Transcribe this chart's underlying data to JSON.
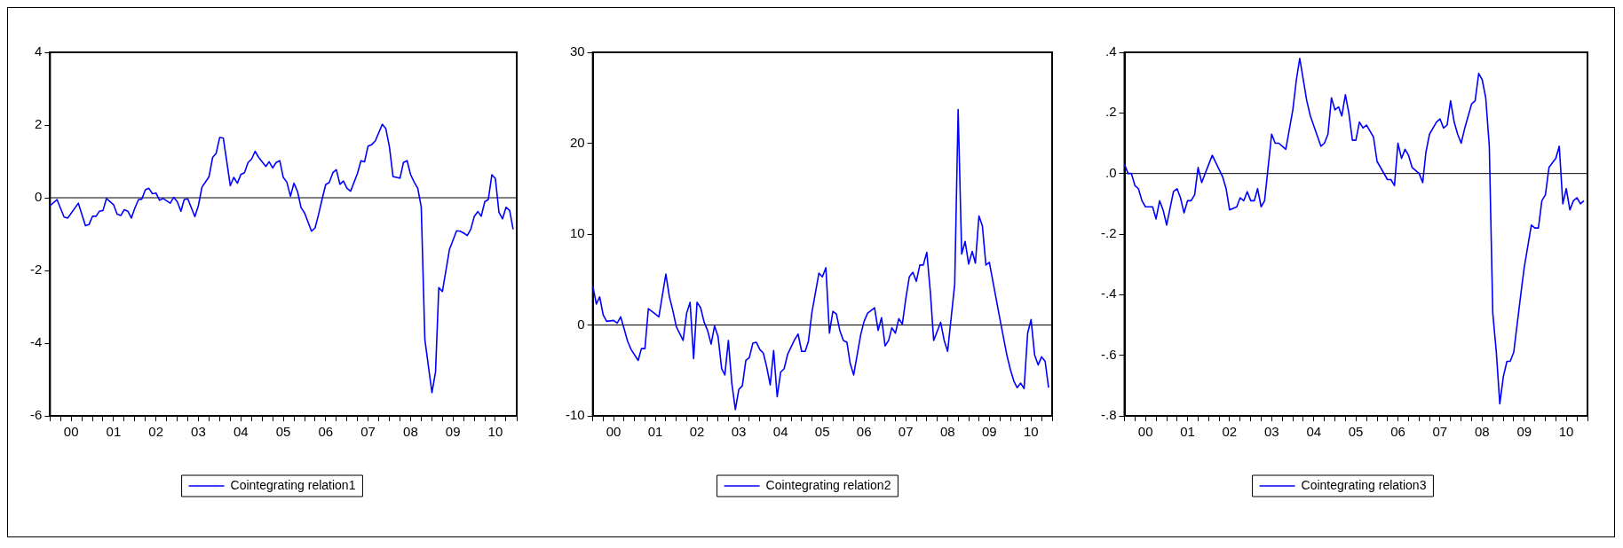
{
  "chart_data": [
    {
      "type": "line",
      "legend": "bottom",
      "xlim": [
        "2000-01",
        "2011-01"
      ],
      "ylim": [
        -6,
        4
      ],
      "yticks": [
        -6,
        -4,
        -2,
        0,
        2,
        4
      ],
      "xticks": [
        {
          "value": "2000-01",
          "label": null
        },
        {
          "value": "2000-04",
          "label": null
        },
        {
          "value": "2000-07",
          "label": "00"
        },
        {
          "value": "2000-10",
          "label": null
        },
        {
          "value": "2001-01",
          "label": null
        },
        {
          "value": "2001-04",
          "label": null
        },
        {
          "value": "2001-07",
          "label": "01"
        },
        {
          "value": "2001-10",
          "label": null
        },
        {
          "value": "2002-01",
          "label": null
        },
        {
          "value": "2002-04",
          "label": null
        },
        {
          "value": "2002-07",
          "label": "02"
        },
        {
          "value": "2002-10",
          "label": null
        },
        {
          "value": "2003-01",
          "label": null
        },
        {
          "value": "2003-04",
          "label": null
        },
        {
          "value": "2003-07",
          "label": "03"
        },
        {
          "value": "2003-10",
          "label": null
        },
        {
          "value": "2004-01",
          "label": null
        },
        {
          "value": "2004-04",
          "label": null
        },
        {
          "value": "2004-07",
          "label": "04"
        },
        {
          "value": "2004-10",
          "label": null
        },
        {
          "value": "2005-01",
          "label": null
        },
        {
          "value": "2005-04",
          "label": null
        },
        {
          "value": "2005-07",
          "label": "05"
        },
        {
          "value": "2005-10",
          "label": null
        },
        {
          "value": "2006-01",
          "label": null
        },
        {
          "value": "2006-04",
          "label": null
        },
        {
          "value": "2006-07",
          "label": "06"
        },
        {
          "value": "2006-10",
          "label": null
        },
        {
          "value": "2007-01",
          "label": null
        },
        {
          "value": "2007-04",
          "label": null
        },
        {
          "value": "2007-07",
          "label": "07"
        },
        {
          "value": "2007-10",
          "label": null
        },
        {
          "value": "2008-01",
          "label": null
        },
        {
          "value": "2008-04",
          "label": null
        },
        {
          "value": "2008-07",
          "label": "08"
        },
        {
          "value": "2008-10",
          "label": null
        },
        {
          "value": "2009-01",
          "label": null
        },
        {
          "value": "2009-04",
          "label": null
        },
        {
          "value": "2009-07",
          "label": "09"
        },
        {
          "value": "2009-10",
          "label": null
        },
        {
          "value": "2010-01",
          "label": null
        },
        {
          "value": "2010-04",
          "label": null
        },
        {
          "value": "2010-07",
          "label": "10"
        },
        {
          "value": "2010-10",
          "label": null
        },
        {
          "value": "2011-01",
          "label": null
        }
      ],
      "ref_lines": [
        {
          "axis": "y",
          "value": 0,
          "color": "#000000"
        }
      ],
      "series": [
        {
          "name": "Cointegrating relation1",
          "color": "#0000ff",
          "x": [
            "2000-01",
            "2000-03",
            "2000-05",
            "2000-06",
            "2000-09",
            "2000-11",
            "2000-12",
            "2001-01",
            "2001-02",
            "2001-03",
            "2001-04",
            "2001-05",
            "2001-07",
            "2001-08",
            "2001-09",
            "2001-10",
            "2001-11",
            "2001-12",
            "2002-01",
            "2002-02",
            "2002-03",
            "2002-04",
            "2002-05",
            "2002-06",
            "2002-07",
            "2002-08",
            "2002-09",
            "2002-11",
            "2002-12",
            "2003-01",
            "2003-02",
            "2003-03",
            "2003-04",
            "2003-06",
            "2003-07",
            "2003-08",
            "2003-10",
            "2003-11",
            "2003-12",
            "2004-01",
            "2004-02",
            "2004-04",
            "2004-05",
            "2004-06",
            "2004-07",
            "2004-08",
            "2004-09",
            "2004-10",
            "2004-11",
            "2004-12",
            "2005-02",
            "2005-03",
            "2005-04",
            "2005-05",
            "2005-06",
            "2005-07",
            "2005-08",
            "2005-09",
            "2005-10",
            "2005-11",
            "2005-12",
            "2006-01",
            "2006-03",
            "2006-04",
            "2006-05",
            "2006-06",
            "2006-07",
            "2006-08",
            "2006-09",
            "2006-10",
            "2006-11",
            "2006-12",
            "2007-01",
            "2007-02",
            "2007-04",
            "2007-05",
            "2007-06",
            "2007-07",
            "2007-08",
            "2007-09",
            "2007-11",
            "2007-12",
            "2008-01",
            "2008-02",
            "2008-03",
            "2008-04",
            "2008-05",
            "2008-06",
            "2008-07",
            "2008-08",
            "2008-09",
            "2008-10",
            "2008-11",
            "2009-01",
            "2009-02",
            "2009-03",
            "2009-04",
            "2009-06",
            "2009-08",
            "2009-09",
            "2009-10",
            "2009-11",
            "2009-12",
            "2010-01",
            "2010-02",
            "2010-03",
            "2010-04",
            "2010-05",
            "2010-06",
            "2010-07",
            "2010-08",
            "2010-09",
            "2010-10",
            "2010-11",
            "2010-12"
          ],
          "values": [
            -0.22,
            -0.05,
            -0.53,
            -0.56,
            -0.15,
            -0.77,
            -0.74,
            -0.51,
            -0.51,
            -0.37,
            -0.35,
            -0.02,
            -0.19,
            -0.45,
            -0.49,
            -0.33,
            -0.37,
            -0.56,
            -0.28,
            -0.05,
            -0.04,
            0.22,
            0.26,
            0.11,
            0.13,
            -0.07,
            -0.02,
            -0.15,
            0.01,
            -0.11,
            -0.37,
            -0.05,
            -0.03,
            -0.52,
            -0.22,
            0.29,
            0.58,
            1.11,
            1.22,
            1.66,
            1.64,
            0.33,
            0.56,
            0.4,
            0.64,
            0.69,
            0.97,
            1.06,
            1.28,
            1.11,
            0.86,
            0.99,
            0.82,
            0.97,
            1.02,
            0.56,
            0.43,
            0.04,
            0.4,
            0.17,
            -0.27,
            -0.42,
            -0.92,
            -0.83,
            -0.46,
            -0.03,
            0.36,
            0.42,
            0.69,
            0.77,
            0.37,
            0.46,
            0.26,
            0.18,
            0.67,
            1.02,
            0.99,
            1.42,
            1.46,
            1.56,
            2.02,
            1.9,
            1.4,
            0.58,
            0.56,
            0.54,
            0.97,
            1.02,
            0.64,
            0.43,
            0.26,
            -0.26,
            -3.9,
            -5.36,
            -4.79,
            -2.47,
            -2.58,
            -1.42,
            -0.91,
            -0.92,
            -0.97,
            -1.04,
            -0.87,
            -0.51,
            -0.38,
            -0.51,
            -0.11,
            -0.05,
            0.63,
            0.53,
            -0.4,
            -0.58,
            -0.26,
            -0.35,
            -0.87
          ]
        }
      ]
    },
    {
      "type": "line",
      "legend": "bottom",
      "xlim": [
        "2000-01",
        "2011-01"
      ],
      "ylim": [
        -10,
        30
      ],
      "yticks": [
        -10,
        0,
        10,
        20,
        30
      ],
      "xticks": [
        {
          "value": "2000-01",
          "label": null
        },
        {
          "value": "2000-04",
          "label": null
        },
        {
          "value": "2000-07",
          "label": "00"
        },
        {
          "value": "2000-10",
          "label": null
        },
        {
          "value": "2001-01",
          "label": null
        },
        {
          "value": "2001-04",
          "label": null
        },
        {
          "value": "2001-07",
          "label": "01"
        },
        {
          "value": "2001-10",
          "label": null
        },
        {
          "value": "2002-01",
          "label": null
        },
        {
          "value": "2002-04",
          "label": null
        },
        {
          "value": "2002-07",
          "label": "02"
        },
        {
          "value": "2002-10",
          "label": null
        },
        {
          "value": "2003-01",
          "label": null
        },
        {
          "value": "2003-04",
          "label": null
        },
        {
          "value": "2003-07",
          "label": "03"
        },
        {
          "value": "2003-10",
          "label": null
        },
        {
          "value": "2004-01",
          "label": null
        },
        {
          "value": "2004-04",
          "label": null
        },
        {
          "value": "2004-07",
          "label": "04"
        },
        {
          "value": "2004-10",
          "label": null
        },
        {
          "value": "2005-01",
          "label": null
        },
        {
          "value": "2005-04",
          "label": null
        },
        {
          "value": "2005-07",
          "label": "05"
        },
        {
          "value": "2005-10",
          "label": null
        },
        {
          "value": "2006-01",
          "label": null
        },
        {
          "value": "2006-04",
          "label": null
        },
        {
          "value": "2006-07",
          "label": "06"
        },
        {
          "value": "2006-10",
          "label": null
        },
        {
          "value": "2007-01",
          "label": null
        },
        {
          "value": "2007-04",
          "label": null
        },
        {
          "value": "2007-07",
          "label": "07"
        },
        {
          "value": "2007-10",
          "label": null
        },
        {
          "value": "2008-01",
          "label": null
        },
        {
          "value": "2008-04",
          "label": null
        },
        {
          "value": "2008-07",
          "label": "08"
        },
        {
          "value": "2008-10",
          "label": null
        },
        {
          "value": "2009-01",
          "label": null
        },
        {
          "value": "2009-04",
          "label": null
        },
        {
          "value": "2009-07",
          "label": "09"
        },
        {
          "value": "2009-10",
          "label": null
        },
        {
          "value": "2010-01",
          "label": null
        },
        {
          "value": "2010-04",
          "label": null
        },
        {
          "value": "2010-07",
          "label": "10"
        },
        {
          "value": "2010-10",
          "label": null
        },
        {
          "value": "2011-01",
          "label": null
        }
      ],
      "ref_lines": [
        {
          "axis": "y",
          "value": 0,
          "color": "#000000"
        }
      ],
      "series": [
        {
          "name": "Cointegrating relation2",
          "color": "#0000ff",
          "x": [
            "2000-01",
            "2000-02",
            "2000-03",
            "2000-04",
            "2000-05",
            "2000-07",
            "2000-08",
            "2000-09",
            "2000-11",
            "2000-12",
            "2001-02",
            "2001-03",
            "2001-04",
            "2001-05",
            "2001-07",
            "2001-08",
            "2001-10",
            "2001-11",
            "2001-12",
            "2002-01",
            "2002-03",
            "2002-04",
            "2002-05",
            "2002-06",
            "2002-07",
            "2002-08",
            "2002-09",
            "2002-10",
            "2002-11",
            "2002-12",
            "2003-01",
            "2003-02",
            "2003-03",
            "2003-04",
            "2003-05",
            "2003-06",
            "2003-07",
            "2003-08",
            "2003-09",
            "2003-10",
            "2003-11",
            "2003-12",
            "2004-01",
            "2004-02",
            "2004-03",
            "2004-04",
            "2004-05",
            "2004-06",
            "2004-07",
            "2004-08",
            "2004-09",
            "2004-11",
            "2004-12",
            "2005-01",
            "2005-02",
            "2005-03",
            "2005-04",
            "2005-06",
            "2005-07",
            "2005-08",
            "2005-09",
            "2005-10",
            "2005-11",
            "2005-12",
            "2006-01",
            "2006-02",
            "2006-03",
            "2006-04",
            "2006-06",
            "2006-07",
            "2006-08",
            "2006-09",
            "2006-10",
            "2006-11",
            "2006-12",
            "2007-01",
            "2007-02",
            "2007-03",
            "2007-04",
            "2007-05",
            "2007-06",
            "2007-07",
            "2007-08",
            "2007-09",
            "2007-10",
            "2007-11",
            "2007-12",
            "2008-01",
            "2008-02",
            "2008-03",
            "2008-05",
            "2008-06",
            "2008-07",
            "2008-09",
            "2008-10",
            "2008-11",
            "2008-12",
            "2009-01",
            "2009-02",
            "2009-03",
            "2009-04",
            "2009-05",
            "2009-06",
            "2009-07",
            "2009-10",
            "2009-12",
            "2010-01",
            "2010-02",
            "2010-03",
            "2010-04",
            "2010-05",
            "2010-06",
            "2010-07",
            "2010-08",
            "2010-09",
            "2010-10",
            "2010-11",
            "2010-12"
          ],
          "values": [
            4.3,
            2.3,
            3.1,
            1.1,
            0.4,
            0.5,
            0.2,
            0.9,
            -1.8,
            -2.7,
            -3.9,
            -2.6,
            -2.6,
            1.8,
            1.2,
            0.9,
            5.6,
            3.1,
            1.6,
            -0.2,
            -1.7,
            1.3,
            2.5,
            -3.7,
            2.5,
            1.9,
            0.3,
            -0.6,
            -2.1,
            -0.1,
            -1.3,
            -4.8,
            -5.5,
            -1.7,
            -6.4,
            -9.3,
            -7.1,
            -6.7,
            -3.9,
            -3.6,
            -2.0,
            -1.9,
            -2.7,
            -3.1,
            -4.6,
            -6.6,
            -2.8,
            -7.9,
            -5.2,
            -4.8,
            -3.2,
            -1.6,
            -1.0,
            -2.9,
            -2.9,
            -1.8,
            1.4,
            5.7,
            5.3,
            6.3,
            -0.9,
            1.5,
            1.2,
            -0.6,
            -1.7,
            -1.9,
            -4.2,
            -5.5,
            -1.1,
            0.4,
            1.3,
            1.6,
            1.9,
            -0.6,
            0.8,
            -2.3,
            -1.7,
            -0.3,
            -0.9,
            0.7,
            0.1,
            2.9,
            5.3,
            5.8,
            4.8,
            6.6,
            6.6,
            8.0,
            3.6,
            -1.7,
            0.3,
            -1.7,
            -2.9,
            4.5,
            23.7,
            7.8,
            9.2,
            6.7,
            8.1,
            6.8,
            12.0,
            10.9,
            6.6,
            6.9,
            0.7,
            -3.3,
            -4.9,
            -6.2,
            -6.9,
            -6.4,
            -7.0,
            -0.9,
            0.6,
            -3.3,
            -4.4,
            -3.5,
            -4.0,
            -6.9
          ]
        }
      ]
    },
    {
      "type": "line",
      "legend": "bottom",
      "xlim": [
        "2000-01",
        "2011-01"
      ],
      "ylim": [
        -0.8,
        0.4
      ],
      "yticks": [
        {
          "value": -0.8,
          "label": "-.8"
        },
        {
          "value": -0.6,
          "label": "-.6"
        },
        {
          "value": -0.4,
          "label": "-.4"
        },
        {
          "value": -0.2,
          "label": "-.2"
        },
        {
          "value": 0,
          "label": ".0"
        },
        {
          "value": 0.2,
          "label": ".2"
        },
        {
          "value": 0.4,
          "label": ".4"
        }
      ],
      "xticks": [
        {
          "value": "2000-01",
          "label": null
        },
        {
          "value": "2000-04",
          "label": null
        },
        {
          "value": "2000-07",
          "label": "00"
        },
        {
          "value": "2000-10",
          "label": null
        },
        {
          "value": "2001-01",
          "label": null
        },
        {
          "value": "2001-04",
          "label": null
        },
        {
          "value": "2001-07",
          "label": "01"
        },
        {
          "value": "2001-10",
          "label": null
        },
        {
          "value": "2002-01",
          "label": null
        },
        {
          "value": "2002-04",
          "label": null
        },
        {
          "value": "2002-07",
          "label": "02"
        },
        {
          "value": "2002-10",
          "label": null
        },
        {
          "value": "2003-01",
          "label": null
        },
        {
          "value": "2003-04",
          "label": null
        },
        {
          "value": "2003-07",
          "label": "03"
        },
        {
          "value": "2003-10",
          "label": null
        },
        {
          "value": "2004-01",
          "label": null
        },
        {
          "value": "2004-04",
          "label": null
        },
        {
          "value": "2004-07",
          "label": "04"
        },
        {
          "value": "2004-10",
          "label": null
        },
        {
          "value": "2005-01",
          "label": null
        },
        {
          "value": "2005-04",
          "label": null
        },
        {
          "value": "2005-07",
          "label": "05"
        },
        {
          "value": "2005-10",
          "label": null
        },
        {
          "value": "2006-01",
          "label": null
        },
        {
          "value": "2006-04",
          "label": null
        },
        {
          "value": "2006-07",
          "label": "06"
        },
        {
          "value": "2006-10",
          "label": null
        },
        {
          "value": "2007-01",
          "label": null
        },
        {
          "value": "2007-04",
          "label": null
        },
        {
          "value": "2007-07",
          "label": "07"
        },
        {
          "value": "2007-10",
          "label": null
        },
        {
          "value": "2008-01",
          "label": null
        },
        {
          "value": "2008-04",
          "label": null
        },
        {
          "value": "2008-07",
          "label": "08"
        },
        {
          "value": "2008-10",
          "label": null
        },
        {
          "value": "2009-01",
          "label": null
        },
        {
          "value": "2009-04",
          "label": null
        },
        {
          "value": "2009-07",
          "label": "09"
        },
        {
          "value": "2009-10",
          "label": null
        },
        {
          "value": "2010-01",
          "label": null
        },
        {
          "value": "2010-04",
          "label": null
        },
        {
          "value": "2010-07",
          "label": "10"
        },
        {
          "value": "2010-10",
          "label": null
        },
        {
          "value": "2011-01",
          "label": null
        }
      ],
      "ref_lines": [
        {
          "axis": "y",
          "value": 0,
          "color": "#000000"
        }
      ],
      "series": [
        {
          "name": "Cointegrating relation3",
          "color": "#0000ff",
          "x": [
            "2000-01",
            "2000-02",
            "2000-03",
            "2000-04",
            "2000-05",
            "2000-06",
            "2000-07",
            "2000-09",
            "2000-10",
            "2000-11",
            "2000-12",
            "2001-01",
            "2001-03",
            "2001-04",
            "2001-05",
            "2001-06",
            "2001-07",
            "2001-08",
            "2001-09",
            "2001-10",
            "2001-11",
            "2001-12",
            "2002-01",
            "2002-02",
            "2002-05",
            "2002-06",
            "2002-07",
            "2002-09",
            "2002-10",
            "2002-11",
            "2002-12",
            "2003-01",
            "2003-02",
            "2003-03",
            "2003-04",
            "2003-05",
            "2003-07",
            "2003-08",
            "2003-09",
            "2003-10",
            "2003-11",
            "2004-01",
            "2004-02",
            "2004-03",
            "2004-05",
            "2004-06",
            "2004-09",
            "2004-10",
            "2004-11",
            "2004-12",
            "2005-01",
            "2005-02",
            "2005-03",
            "2005-04",
            "2005-05",
            "2005-06",
            "2005-07",
            "2005-08",
            "2005-09",
            "2005-10",
            "2005-11",
            "2005-12",
            "2006-01",
            "2006-04",
            "2006-05",
            "2006-06",
            "2006-07",
            "2006-08",
            "2006-09",
            "2006-10",
            "2006-11",
            "2007-01",
            "2007-02",
            "2007-03",
            "2007-04",
            "2007-06",
            "2007-07",
            "2007-08",
            "2007-09",
            "2007-10",
            "2007-11",
            "2007-12",
            "2008-01",
            "2008-02",
            "2008-04",
            "2008-05",
            "2008-06",
            "2008-07",
            "2008-08",
            "2008-09",
            "2008-10",
            "2008-11",
            "2008-12",
            "2009-01",
            "2009-02",
            "2009-03",
            "2009-04",
            "2009-06",
            "2009-07",
            "2009-09",
            "2009-10",
            "2009-11",
            "2009-12",
            "2010-01",
            "2010-02",
            "2010-04",
            "2010-05",
            "2010-06",
            "2010-07",
            "2010-08",
            "2010-09",
            "2010-10",
            "2010-11",
            "2010-12"
          ],
          "values": [
            0.03,
            0.0,
            0.0,
            -0.04,
            -0.05,
            -0.09,
            -0.11,
            -0.11,
            -0.15,
            -0.09,
            -0.12,
            -0.17,
            -0.06,
            -0.05,
            -0.08,
            -0.13,
            -0.09,
            -0.09,
            -0.07,
            0.02,
            -0.03,
            0.0,
            0.03,
            0.06,
            -0.01,
            -0.05,
            -0.12,
            -0.11,
            -0.08,
            -0.09,
            -0.06,
            -0.09,
            -0.09,
            -0.05,
            -0.11,
            -0.09,
            0.13,
            0.1,
            0.1,
            0.09,
            0.08,
            0.21,
            0.31,
            0.38,
            0.24,
            0.19,
            0.09,
            0.1,
            0.13,
            0.25,
            0.21,
            0.22,
            0.19,
            0.26,
            0.2,
            0.11,
            0.11,
            0.17,
            0.15,
            0.16,
            0.14,
            0.12,
            0.04,
            -0.02,
            -0.02,
            -0.04,
            0.1,
            0.05,
            0.08,
            0.06,
            0.02,
            0.0,
            -0.03,
            0.07,
            0.13,
            0.17,
            0.18,
            0.15,
            0.16,
            0.24,
            0.17,
            0.13,
            0.1,
            0.15,
            0.23,
            0.24,
            0.33,
            0.31,
            0.25,
            0.09,
            -0.46,
            -0.59,
            -0.76,
            -0.67,
            -0.62,
            -0.62,
            -0.59,
            -0.4,
            -0.31,
            -0.17,
            -0.18,
            -0.18,
            -0.09,
            -0.07,
            0.02,
            0.05,
            0.09,
            -0.1,
            -0.05,
            -0.12,
            -0.09,
            -0.08,
            -0.1,
            -0.09
          ]
        }
      ]
    }
  ]
}
